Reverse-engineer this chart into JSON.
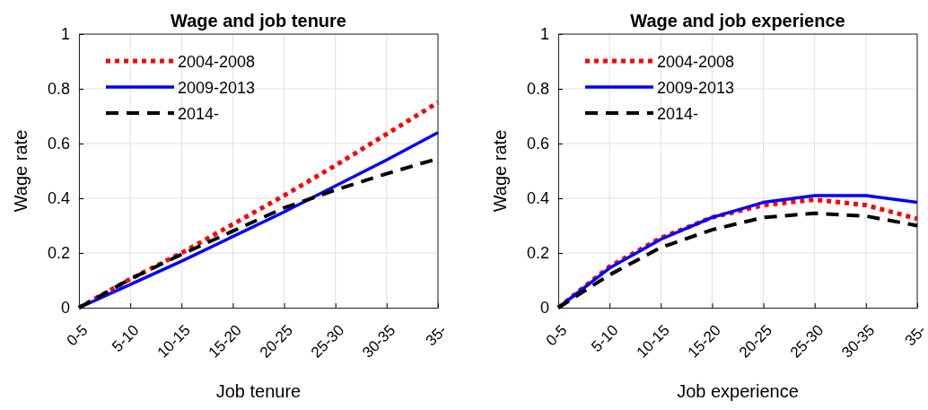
{
  "chart_data": [
    {
      "type": "line",
      "title": "Wage and job tenure",
      "xlabel": "Job tenure",
      "ylabel": "Wage rate",
      "categories": [
        "0-5",
        "5-10",
        "10-15",
        "15-20",
        "20-25",
        "25-30",
        "30-35",
        "35-"
      ],
      "ylim": [
        0,
        1
      ],
      "yticks": [
        0,
        0.2,
        0.4,
        0.6,
        0.8,
        1
      ],
      "grid": true,
      "legend": "top left",
      "series": [
        {
          "name": "2004-2008",
          "color": "#ff0000",
          "line_style": "dotted",
          "values": [
            0,
            0.105,
            0.2,
            0.305,
            0.41,
            0.52,
            0.635,
            0.75
          ]
        },
        {
          "name": "2009-2013",
          "color": "#0000ff",
          "line_style": "solid",
          "values": [
            0,
            0.085,
            0.17,
            0.26,
            0.35,
            0.445,
            0.54,
            0.64
          ]
        },
        {
          "name": "2014-",
          "color": "#000000",
          "line_style": "dashed",
          "values": [
            0,
            0.105,
            0.195,
            0.28,
            0.365,
            0.43,
            0.49,
            0.545
          ]
        }
      ]
    },
    {
      "type": "line",
      "title": "Wage and job experience",
      "xlabel": "Job experience",
      "ylabel": "Wage rate",
      "categories": [
        "0-5",
        "5-10",
        "10-15",
        "15-20",
        "20-25",
        "25-30",
        "30-35",
        "35-"
      ],
      "ylim": [
        0,
        1
      ],
      "yticks": [
        0,
        0.2,
        0.4,
        0.6,
        0.8,
        1
      ],
      "grid": true,
      "legend": "top left",
      "series": [
        {
          "name": "2004-2008",
          "color": "#ff0000",
          "line_style": "dotted",
          "values": [
            0,
            0.15,
            0.255,
            0.33,
            0.375,
            0.395,
            0.375,
            0.325
          ]
        },
        {
          "name": "2009-2013",
          "color": "#0000ff",
          "line_style": "solid",
          "values": [
            0,
            0.145,
            0.25,
            0.33,
            0.385,
            0.41,
            0.41,
            0.385
          ]
        },
        {
          "name": "2014-",
          "color": "#000000",
          "line_style": "dashed",
          "values": [
            0,
            0.12,
            0.22,
            0.285,
            0.33,
            0.345,
            0.335,
            0.3
          ]
        }
      ]
    }
  ]
}
